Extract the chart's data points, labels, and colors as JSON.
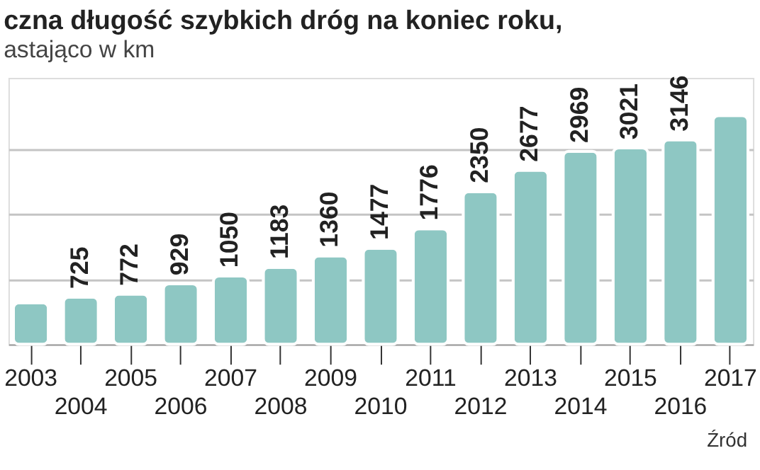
{
  "chart_data": {
    "type": "bar",
    "title": "czna długość szybkich dróg na koniec roku,",
    "subtitle": "astająco w km",
    "categories": [
      "2003",
      "2004",
      "2005",
      "2006",
      "2007",
      "2008",
      "2009",
      "2010",
      "2011",
      "2012",
      "2013",
      "2014",
      "2015",
      "2016",
      "2017"
    ],
    "values": [
      640,
      725,
      772,
      929,
      1050,
      1183,
      1360,
      1477,
      1776,
      2350,
      2677,
      2969,
      3021,
      3146,
      3520
    ],
    "value_labels": [
      null,
      "725",
      "772",
      "929",
      "1050",
      "1183",
      "1360",
      "1477",
      "1776",
      "2350",
      "2677",
      "2969",
      "3021",
      "3146",
      null
    ],
    "color": "#8ec7c3",
    "ylim": [
      0,
      4100
    ],
    "yticks": [
      {
        "value": 1000,
        "label": null
      },
      {
        "value": 2000,
        "label": null
      },
      {
        "value": 3000,
        "label": null
      }
    ],
    "grid": "y",
    "tick_labels": "x",
    "annotations": [
      "Źród"
    ]
  }
}
